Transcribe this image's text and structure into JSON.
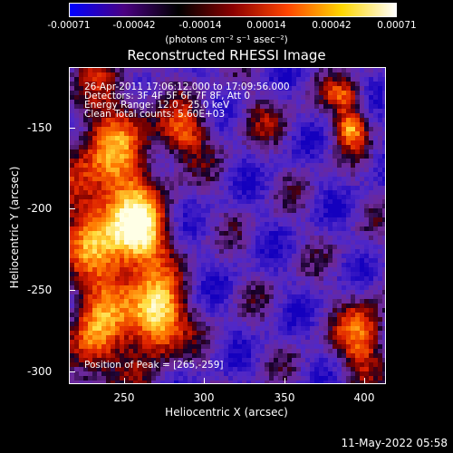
{
  "colorbar": {
    "ticks": [
      "-0.00071",
      "-0.00042",
      "-0.00014",
      "0.00014",
      "0.00042",
      "0.00071"
    ],
    "units": "(photons cm⁻² s⁻¹ asec⁻²)",
    "colors": [
      "#0000ff",
      "#4b0082",
      "#000000",
      "#8b0000",
      "#ff4500",
      "#ffd700",
      "#ffffff"
    ]
  },
  "plot": {
    "title": "Reconstructed RHESSI Image",
    "xlabel": "Heliocentric X (arcsec)",
    "ylabel": "Heliocentric Y (arcsec)",
    "xticks": [
      "250",
      "300",
      "350",
      "400"
    ],
    "yticks": [
      "-150",
      "-200",
      "-250",
      "-300"
    ]
  },
  "annotations": {
    "time": "26-Apr-2011 17:06:12.000 to 17:09:56.000",
    "detectors": "Detectors: 3F 4F 5F 6F 7F 8F, Att 0",
    "energy": "Energy Range: 12.0 - 25.0 keV",
    "clean": "Clean     Total counts: 5.60E+03",
    "peak": "Position of Peak = [265,-259]"
  },
  "datestamp": "11-May-2022 05:58"
}
